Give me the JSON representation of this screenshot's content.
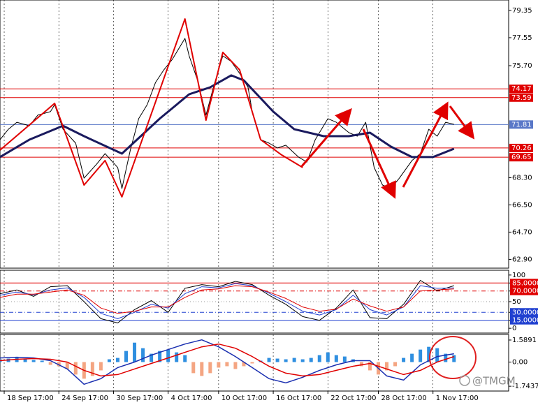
{
  "chart_data": [
    {
      "type": "line",
      "xlim": [
        0,
        121
      ],
      "ylim": [
        62.32,
        80.04
      ],
      "yticks": [
        79.35,
        77.55,
        {
          "value": 75.7,
          "label": "75.70"
        },
        {
          "value": 68.3,
          "label": "68.30"
        },
        {
          "value": 66.5,
          "label": "66.50"
        },
        {
          "value": 64.7,
          "label": "64.70"
        },
        {
          "value": 62.9,
          "label": "62.90"
        }
      ],
      "hlines": [
        {
          "value": 74.17,
          "color": "#e00000",
          "style": "solid"
        },
        {
          "value": 73.59,
          "color": "#e00000",
          "style": "solid"
        },
        {
          "value": 71.81,
          "color": "#5a78c8",
          "style": "solid"
        },
        {
          "value": 70.26,
          "color": "#e00000",
          "style": "solid"
        },
        {
          "value": 69.65,
          "color": "#e00000",
          "style": "solid"
        }
      ],
      "series": [
        {
          "color": "#000000",
          "x": [
            0,
            2,
            4,
            7,
            9,
            12,
            13,
            15,
            18,
            20,
            23,
            25,
            28,
            29,
            31,
            33,
            35,
            37,
            39,
            41,
            44,
            45,
            47,
            49,
            51,
            53,
            55,
            57,
            59,
            60,
            62,
            64,
            66,
            68,
            71,
            73,
            75,
            78,
            80,
            83,
            85,
            87,
            89,
            91,
            93,
            95,
            98,
            100,
            102,
            104,
            106,
            108
          ],
          "values": [
            70.81,
            71.5,
            71.96,
            71.73,
            72.43,
            72.66,
            73.12,
            71.5,
            70.58,
            68.27,
            69.2,
            69.89,
            68.97,
            67.58,
            70.12,
            72.2,
            73.12,
            74.59,
            75.43,
            76.12,
            77.5,
            76.35,
            74.73,
            72.43,
            74.5,
            76.35,
            75.98,
            75.2,
            74.27,
            72.66,
            70.81,
            70.58,
            70.26,
            70.44,
            69.66,
            69.33,
            70.81,
            72.2,
            71.96,
            71.27,
            71.04,
            71.96,
            68.97,
            67.81,
            67.58,
            68.27,
            69.43,
            69.89,
            71.5,
            71.04,
            71.96,
            71.82
          ]
        },
        {
          "color": "#1a1a5e",
          "x": [
            0,
            7,
            15,
            20,
            29,
            38,
            45,
            50,
            55,
            58,
            65,
            70,
            77,
            83,
            88,
            93,
            98,
            103,
            108
          ],
          "values": [
            69.66,
            70.81,
            71.73,
            71.04,
            69.89,
            72.2,
            73.81,
            74.27,
            75.06,
            74.73,
            72.66,
            71.5,
            71.04,
            71.04,
            71.27,
            70.35,
            69.66,
            69.66,
            70.21
          ]
        },
        {
          "color": "#e00000",
          "x": [
            0,
            13,
            20,
            25,
            29,
            44,
            49,
            53,
            57,
            62,
            67,
            72
          ],
          "values": [
            70.12,
            73.21,
            67.81,
            69.43,
            67.03,
            78.79,
            72.1,
            76.58,
            75.43,
            70.81,
            69.8,
            68.97
          ]
        }
      ]
    },
    {
      "type": "line",
      "xlim": [
        0,
        121
      ],
      "ylim": [
        -9,
        109
      ],
      "yticks": [
        100,
        {
          "value": 85,
          "label": "85.0000"
        },
        {
          "value": 70,
          "label": "70.0000"
        },
        50,
        {
          "value": 30,
          "label": "30.0000"
        },
        {
          "value": 15,
          "label": "15.0000"
        },
        0
      ],
      "hlines": [
        {
          "value": 85,
          "color": "#e00000",
          "style": "solid"
        },
        {
          "value": 70,
          "color": "#e00000",
          "style": "dashdot"
        },
        {
          "value": 50,
          "color": "#999999",
          "style": "dotted"
        },
        {
          "value": 30,
          "color": "#2040d0",
          "style": "dashdot"
        },
        {
          "value": 15,
          "color": "#2040d0",
          "style": "solid"
        }
      ],
      "series": [
        {
          "color": "#000000",
          "x": [
            0,
            4,
            8,
            12,
            16,
            20,
            24,
            28,
            32,
            36,
            40,
            44,
            48,
            52,
            56,
            60,
            64,
            68,
            72,
            76,
            80,
            84,
            88,
            92,
            96,
            100,
            104,
            108
          ],
          "values": [
            65,
            72,
            60,
            78,
            80,
            50,
            18,
            10,
            35,
            52,
            30,
            75,
            82,
            78,
            88,
            82,
            62,
            45,
            22,
            15,
            38,
            72,
            20,
            18,
            45,
            90,
            70,
            80
          ]
        },
        {
          "color": "#2040d0",
          "x": [
            0,
            4,
            8,
            12,
            16,
            20,
            24,
            28,
            32,
            36,
            40,
            44,
            48,
            52,
            56,
            60,
            64,
            68,
            72,
            76,
            80,
            84,
            88,
            92,
            96,
            100,
            104,
            108
          ],
          "values": [
            62,
            68,
            63,
            72,
            76,
            58,
            28,
            18,
            30,
            45,
            38,
            65,
            78,
            76,
            84,
            80,
            66,
            50,
            32,
            25,
            35,
            62,
            35,
            25,
            40,
            80,
            75,
            76
          ]
        },
        {
          "color": "#e00000",
          "x": [
            0,
            4,
            8,
            12,
            16,
            20,
            24,
            28,
            32,
            36,
            40,
            44,
            48,
            52,
            56,
            60,
            64,
            68,
            72,
            76,
            80,
            84,
            88,
            92,
            96,
            100,
            104,
            108
          ],
          "values": [
            58,
            64,
            64,
            68,
            72,
            62,
            38,
            28,
            32,
            40,
            40,
            58,
            72,
            74,
            80,
            78,
            68,
            56,
            40,
            32,
            36,
            55,
            42,
            32,
            40,
            70,
            72,
            74
          ]
        }
      ]
    },
    {
      "type": "macd",
      "xlim": [
        0,
        121
      ],
      "ylim": [
        -2.09,
        1.99
      ],
      "grid": true,
      "yticks": [
        1.5891,
        {
          "value": 0,
          "label": "0.00"
        },
        -1.7437
      ],
      "xticks": [
        {
          "value": 1,
          "label": "18 Sep 17:00"
        },
        {
          "value": 14,
          "label": "24 Sep 17:00"
        },
        {
          "value": 27,
          "label": "30 Sep 17:00"
        },
        {
          "value": 40,
          "label": "4 Oct 17:00"
        },
        {
          "value": 52,
          "label": "10 Oct 17:00"
        },
        {
          "value": 65,
          "label": "16 Oct 17:00"
        },
        {
          "value": 78,
          "label": "22 Oct 17:00"
        },
        {
          "value": 90,
          "label": "28 Oct 17:00"
        },
        {
          "value": 103,
          "label": "1 Nov 17:00"
        }
      ],
      "series": [
        {
          "type": "bar",
          "color": "#2f8fe0",
          "negative_color": "#f4a582",
          "x": [
            0,
            2,
            4,
            6,
            8,
            10,
            12,
            14,
            16,
            18,
            20,
            22,
            24,
            26,
            28,
            30,
            32,
            34,
            36,
            38,
            40,
            42,
            44,
            46,
            48,
            50,
            52,
            54,
            56,
            58,
            60,
            62,
            64,
            66,
            68,
            70,
            72,
            74,
            76,
            78,
            80,
            82,
            84,
            86,
            88,
            90,
            92,
            94,
            96,
            98,
            100,
            102,
            104,
            106,
            108
          ],
          "values": [
            0.2,
            0.25,
            0.3,
            0.2,
            0.15,
            0.1,
            -0.2,
            -0.3,
            -0.5,
            -0.9,
            -1.2,
            -1.0,
            -0.6,
            0.2,
            0.3,
            0.8,
            1.4,
            1.0,
            0.6,
            0.8,
            0.9,
            0.7,
            0.5,
            -0.8,
            -1.0,
            -0.8,
            -0.4,
            -0.3,
            -0.5,
            -0.3,
            -0.1,
            0.1,
            0.3,
            0.25,
            0.2,
            0.3,
            0.2,
            0.3,
            0.5,
            0.7,
            0.5,
            0.4,
            0.2,
            -0.3,
            -0.6,
            -0.9,
            -0.6,
            -0.3,
            0.3,
            0.6,
            0.9,
            1.1,
            1.0,
            0.6,
            0.5
          ]
        },
        {
          "type": "line",
          "color": "#1a2fb0",
          "x": [
            0,
            4,
            8,
            12,
            16,
            20,
            24,
            28,
            32,
            36,
            40,
            44,
            48,
            52,
            56,
            60,
            64,
            68,
            72,
            76,
            80,
            84,
            88,
            92,
            96,
            100,
            104,
            108
          ],
          "values": [
            0.3,
            0.35,
            0.3,
            0.1,
            -0.5,
            -1.6,
            -1.2,
            -0.4,
            0.0,
            0.5,
            0.9,
            1.3,
            1.6,
            1.1,
            0.4,
            -0.4,
            -1.2,
            -1.5,
            -1.1,
            -0.6,
            -0.2,
            0.1,
            0.1,
            -1.0,
            -1.3,
            -0.2,
            0.4,
            0.6
          ]
        },
        {
          "type": "line",
          "color": "#e00000",
          "x": [
            0,
            4,
            8,
            12,
            16,
            20,
            24,
            28,
            32,
            36,
            40,
            44,
            48,
            52,
            56,
            60,
            64,
            68,
            72,
            76,
            80,
            84,
            88,
            92,
            96,
            100,
            104,
            108
          ],
          "values": [
            0.1,
            0.2,
            0.25,
            0.2,
            0.0,
            -0.6,
            -1.0,
            -0.9,
            -0.5,
            -0.1,
            0.3,
            0.7,
            1.1,
            1.3,
            1.0,
            0.4,
            -0.3,
            -0.8,
            -1.0,
            -0.9,
            -0.6,
            -0.3,
            -0.1,
            -0.5,
            -0.9,
            -0.6,
            0.0,
            0.4
          ]
        }
      ]
    }
  ],
  "watermark": "@TMGM"
}
